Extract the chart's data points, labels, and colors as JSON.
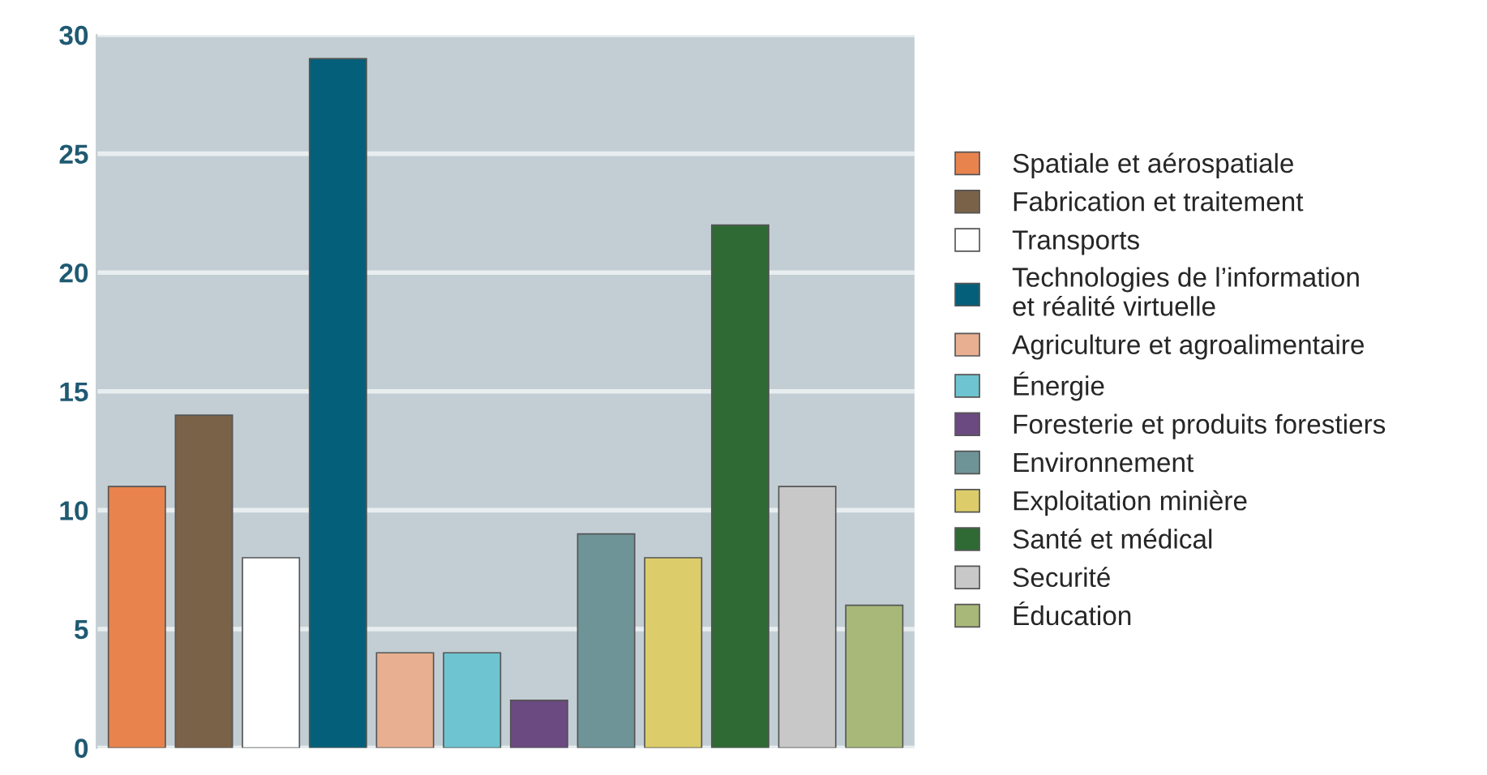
{
  "chart_data": {
    "type": "bar",
    "categories": [
      null,
      null,
      null,
      null,
      null,
      null,
      null,
      null,
      null,
      null,
      null,
      null
    ],
    "series": [
      {
        "name": "Spatiale et aérospatiale",
        "color": "#e8834e",
        "values": [
          11,
          null,
          null,
          null,
          null,
          null,
          null,
          null,
          null,
          null,
          null,
          null
        ]
      },
      {
        "name": "Fabrication et traitement",
        "color": "#7a6248",
        "values": [
          null,
          14,
          null,
          null,
          null,
          null,
          null,
          null,
          null,
          null,
          null,
          null
        ]
      },
      {
        "name": "Transports",
        "color": "#ffffff",
        "values": [
          null,
          null,
          8,
          null,
          null,
          null,
          null,
          null,
          null,
          null,
          null,
          null
        ]
      },
      {
        "name": "Technologies de l’information\net réalité virtuelle",
        "color": "#04607a",
        "values": [
          null,
          null,
          null,
          29,
          null,
          null,
          null,
          null,
          null,
          null,
          null,
          null
        ]
      },
      {
        "name": "Agriculture et agroalimentaire",
        "color": "#e8b090",
        "values": [
          null,
          null,
          null,
          null,
          4,
          null,
          null,
          null,
          null,
          null,
          null,
          null
        ]
      },
      {
        "name": "Énergie",
        "color": "#6ec4d0",
        "values": [
          null,
          null,
          null,
          null,
          null,
          4,
          null,
          null,
          null,
          null,
          null,
          null
        ]
      },
      {
        "name": "Foresterie et produits forestiers",
        "color": "#6a4a80",
        "values": [
          null,
          null,
          null,
          null,
          null,
          null,
          2,
          null,
          null,
          null,
          null,
          null
        ]
      },
      {
        "name": "Environnement",
        "color": "#6f9498",
        "values": [
          null,
          null,
          null,
          null,
          null,
          null,
          null,
          9,
          null,
          null,
          null,
          null
        ]
      },
      {
        "name": "Exploitation minière",
        "color": "#dccd6a",
        "values": [
          null,
          null,
          null,
          null,
          null,
          null,
          null,
          null,
          8,
          null,
          null,
          null
        ]
      },
      {
        "name": "Santé et médical",
        "color": "#2f6a35",
        "values": [
          null,
          null,
          null,
          null,
          null,
          null,
          null,
          null,
          null,
          22,
          null,
          null
        ]
      },
      {
        "name": "Securité",
        "color": "#c8c8c8",
        "values": [
          null,
          null,
          null,
          null,
          null,
          null,
          null,
          null,
          null,
          null,
          11,
          null
        ]
      },
      {
        "name": "Éducation",
        "color": "#a8b878",
        "values": [
          null,
          null,
          null,
          null,
          null,
          null,
          null,
          null,
          null,
          null,
          null,
          6
        ]
      }
    ],
    "ylim": [
      0,
      30
    ],
    "yticks": [
      0,
      5,
      10,
      15,
      20,
      25,
      30
    ],
    "grid": "y",
    "legend": "right",
    "tick_labels": "y"
  }
}
